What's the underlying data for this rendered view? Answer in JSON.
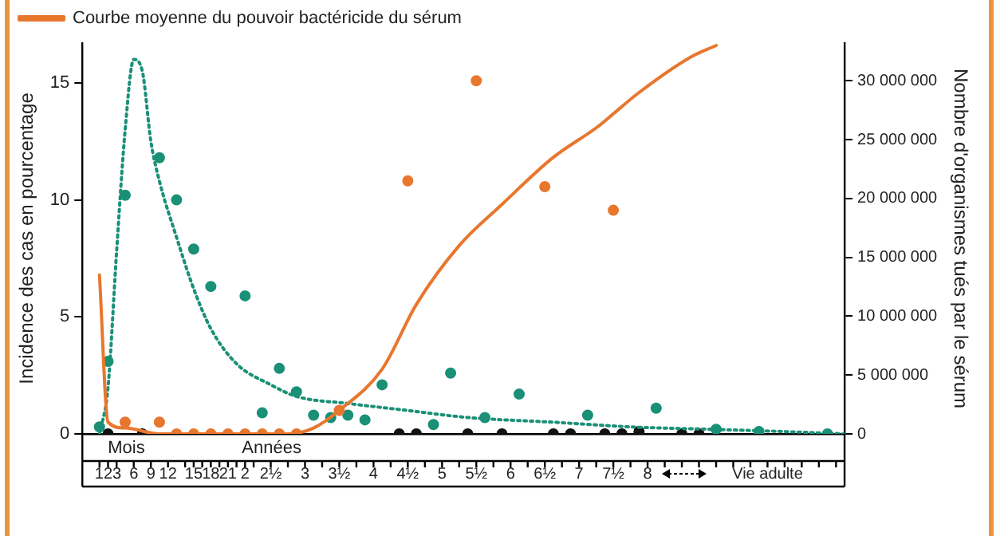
{
  "chart_data": {
    "type": "line",
    "ylabel": "Incidence des cas en pourcentage",
    "y2label": "Nombre d'organismes tués par le sérum",
    "annotations": [
      "Mois",
      "Années"
    ],
    "categories": [
      null,
      null,
      null,
      "123",
      null,
      null,
      "6",
      null,
      "9",
      null,
      "12",
      null,
      null,
      "15",
      null,
      "18",
      null,
      "21",
      null,
      "2",
      null,
      null,
      "2½",
      null,
      null,
      null,
      "3",
      null,
      null,
      null,
      "3½",
      null,
      null,
      null,
      "4",
      null,
      null,
      null,
      "4½",
      null,
      null,
      null,
      "5",
      null,
      null,
      null,
      "5½",
      null,
      null,
      null,
      "6",
      null,
      null,
      null,
      "6½",
      null,
      null,
      null,
      "7",
      null,
      null,
      null,
      "7½",
      null,
      null,
      null,
      "8",
      null,
      null,
      null,
      null,
      null,
      null,
      null,
      null,
      null,
      null,
      null,
      null,
      null,
      "Vie adulte",
      null,
      null,
      null,
      null,
      null,
      null,
      null,
      null,
      null
    ],
    "ylim": [
      0,
      16.7
    ],
    "yticks": [
      0,
      5,
      10,
      15
    ],
    "y2lim": [
      0,
      33200000
    ],
    "y2ticks": [
      {
        "value": 0,
        "label": "0"
      },
      {
        "value": 5000000,
        "label": "5 000 000"
      },
      {
        "value": 10000000,
        "label": "10 000 000"
      },
      {
        "value": 15000000,
        "label": "15 000 000"
      },
      {
        "value": 20000000,
        "label": "20 000 000"
      },
      {
        "value": 25000000,
        "label": "25 000 000"
      },
      {
        "value": 30000000,
        "label": "30 000 000"
      }
    ],
    "legend": "top",
    "series": [
      {
        "name": "Courbe moyenne du pouvoir bactéricide du sérum",
        "color": "#e8772e",
        "axis": "y2",
        "line_style": "solid",
        "marker": "none",
        "values": [
          null,
          null,
          13500000,
          1000000,
          null,
          500000,
          null,
          null,
          null,
          0,
          null,
          null,
          null,
          null,
          null,
          null,
          null,
          null,
          0,
          null,
          null,
          null,
          null,
          null,
          0,
          null,
          null,
          500000,
          null,
          null,
          2000000,
          null,
          null,
          null,
          null,
          5500000,
          null,
          null,
          null,
          11000000,
          null,
          null,
          null,
          null,
          16000000,
          null,
          null,
          null,
          null,
          19500000,
          null,
          null,
          null,
          null,
          null,
          23500000,
          null,
          null,
          null,
          null,
          26000000,
          null,
          null,
          null,
          null,
          29000000,
          null,
          null,
          null,
          null,
          null,
          32000000,
          null,
          null,
          33000000,
          null,
          null,
          null,
          null,
          null,
          null,
          null,
          null,
          null,
          null,
          null,
          null,
          null,
          null,
          null
        ]
      },
      {
        "type": "scatter",
        "color": "#e8772e",
        "axis": "y2",
        "marker": "circle",
        "values": [
          null,
          null,
          null,
          null,
          null,
          1000000,
          null,
          null,
          null,
          1000000,
          null,
          0,
          null,
          0,
          null,
          0,
          null,
          0,
          null,
          0,
          null,
          0,
          null,
          0,
          null,
          0,
          null,
          null,
          null,
          null,
          2000000,
          null,
          null,
          null,
          null,
          null,
          null,
          null,
          21500000,
          null,
          null,
          null,
          null,
          null,
          null,
          null,
          30000000,
          null,
          null,
          null,
          null,
          null,
          null,
          null,
          21000000,
          null,
          null,
          null,
          null,
          null,
          null,
          null,
          19000000,
          null,
          null,
          null,
          null,
          null,
          null,
          null,
          null,
          null,
          null,
          null,
          null,
          null,
          null,
          null,
          null,
          null,
          null,
          null,
          null,
          null,
          null,
          null,
          null,
          null,
          null,
          null
        ]
      },
      {
        "color": "#1a9077",
        "line_style": "dotted",
        "marker": "none",
        "values": [
          null,
          null,
          0,
          2,
          7.8,
          13,
          16,
          15.5,
          12.5,
          10.8,
          null,
          8.4,
          null,
          6.2,
          null,
          4.5,
          null,
          null,
          3,
          null,
          null,
          null,
          2.1,
          null,
          null,
          1.6,
          null,
          null,
          null,
          null,
          null,
          1.3,
          null,
          null,
          null,
          null,
          null,
          null,
          1,
          null,
          null,
          null,
          null,
          null,
          null,
          0.7,
          null,
          null,
          null,
          null,
          null,
          null,
          null,
          null,
          null,
          0.5,
          null,
          null,
          null,
          null,
          null,
          null,
          null,
          null,
          0.3,
          null,
          null,
          null,
          null,
          null,
          null,
          null,
          null,
          0.2,
          null,
          null,
          null,
          null,
          null,
          null,
          null,
          null,
          0.1,
          null,
          null,
          null,
          null,
          null,
          null,
          0
        ]
      },
      {
        "type": "scatter",
        "color": "#1a9077",
        "marker": "circle",
        "values": [
          null,
          null,
          0.3,
          3.1,
          null,
          10.2,
          null,
          null,
          null,
          11.8,
          null,
          10,
          null,
          7.9,
          null,
          6.3,
          null,
          null,
          null,
          5.9,
          null,
          0.9,
          null,
          2.8,
          null,
          1.8,
          null,
          0.8,
          null,
          0.7,
          null,
          0.8,
          null,
          0.6,
          null,
          2.1,
          null,
          null,
          null,
          null,
          null,
          0.4,
          null,
          2.6,
          null,
          null,
          null,
          0.7,
          null,
          null,
          null,
          1.7,
          null,
          null,
          null,
          null,
          null,
          null,
          null,
          0.8,
          null,
          null,
          null,
          null,
          null,
          null,
          null,
          1.1,
          null,
          null,
          null,
          null,
          null,
          null,
          0.2,
          null,
          null,
          null,
          null,
          0.1,
          null,
          null,
          null,
          null,
          null,
          null,
          null,
          0,
          null,
          null
        ]
      },
      {
        "type": "scatter",
        "color": "#111111",
        "marker": "circle",
        "values": [
          null,
          null,
          null,
          0,
          null,
          null,
          null,
          0,
          null,
          null,
          null,
          null,
          null,
          null,
          null,
          null,
          null,
          null,
          null,
          null,
          null,
          null,
          null,
          null,
          null,
          null,
          null,
          null,
          null,
          null,
          null,
          null,
          null,
          null,
          null,
          null,
          null,
          0,
          null,
          0,
          null,
          null,
          null,
          null,
          null,
          0,
          null,
          null,
          null,
          0,
          null,
          null,
          null,
          null,
          null,
          0,
          null,
          0,
          null,
          null,
          null,
          0,
          null,
          0,
          null,
          0.1,
          null,
          null,
          null,
          null,
          0,
          null,
          0,
          null,
          null,
          null,
          null,
          null,
          null,
          null,
          null,
          null,
          null,
          null,
          null,
          null,
          null,
          null,
          null,
          null
        ]
      }
    ]
  }
}
